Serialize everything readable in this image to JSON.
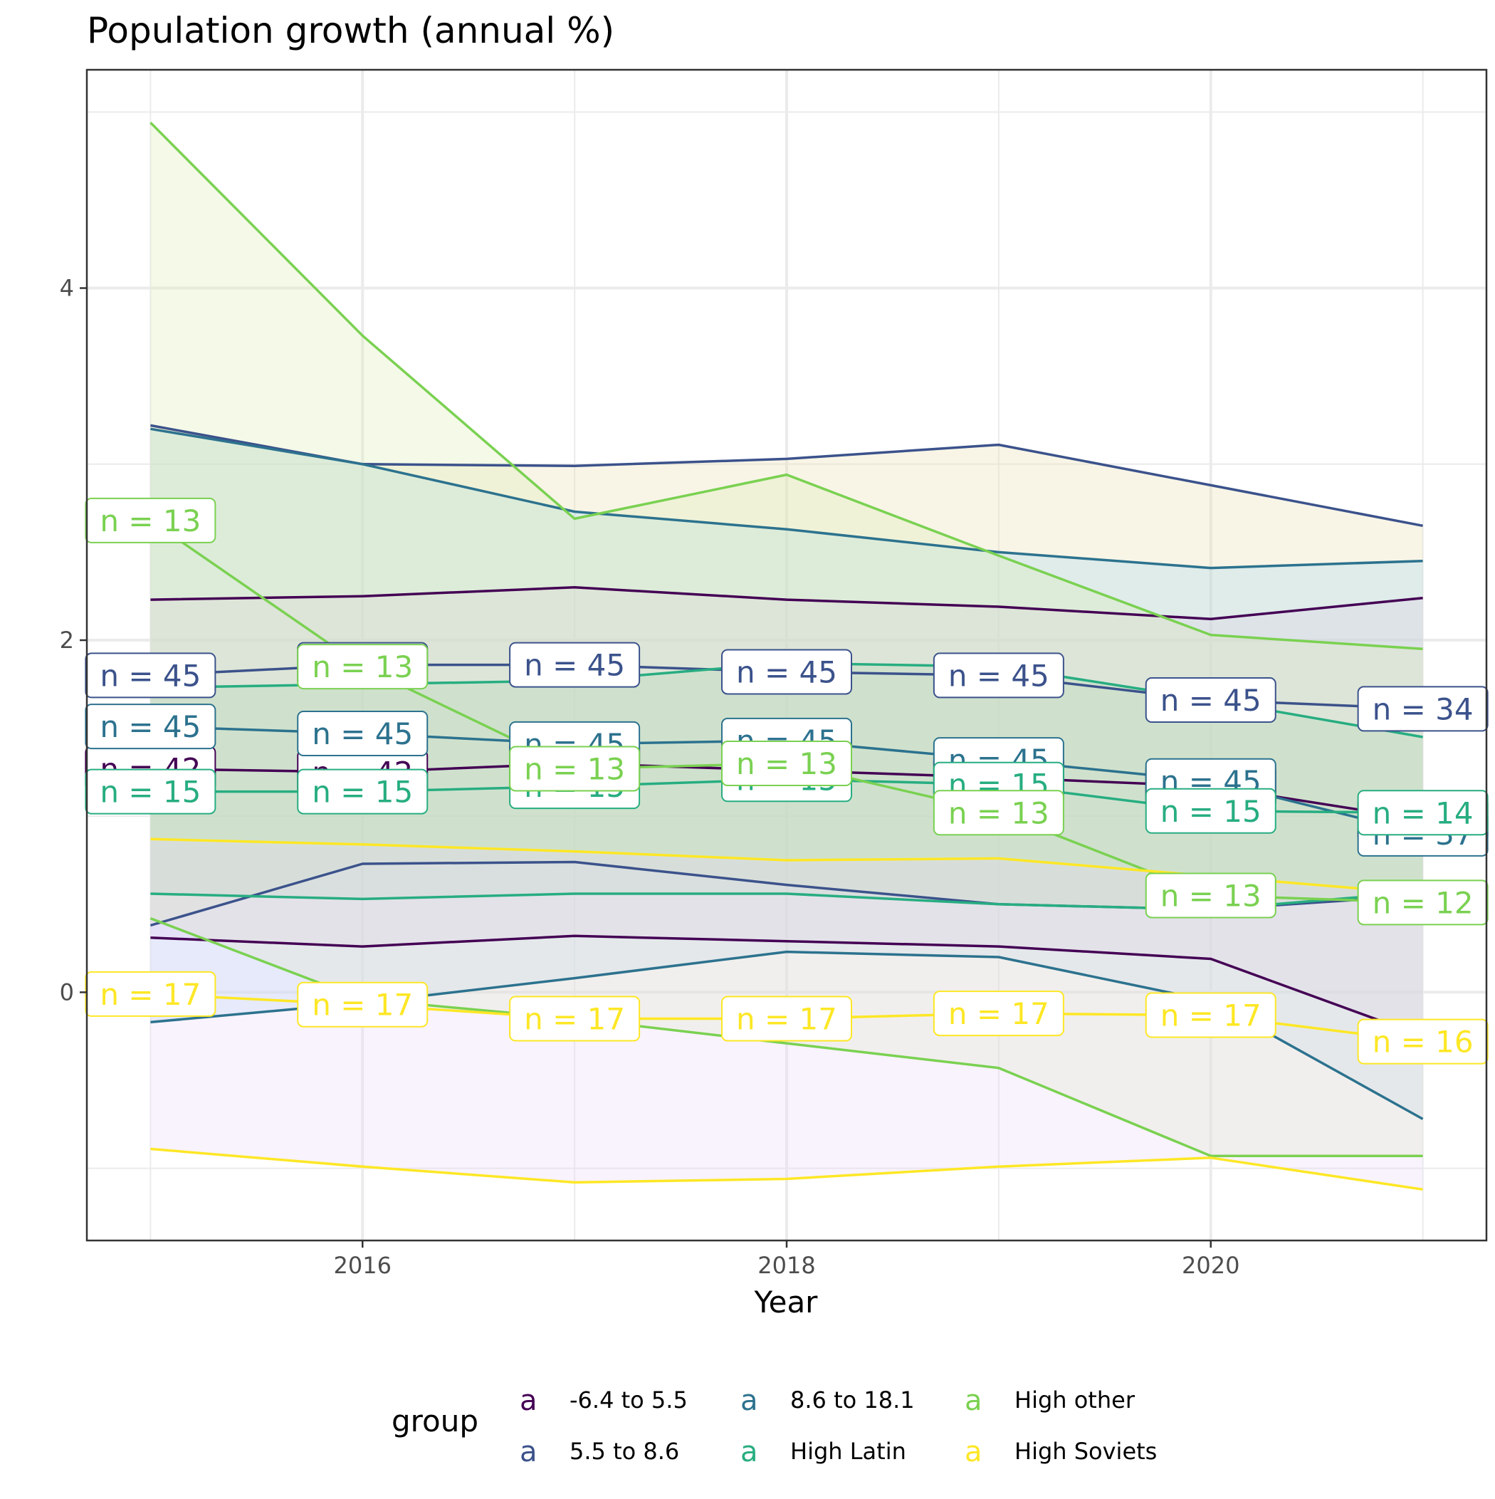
{
  "chart_data": {
    "type": "line",
    "title": "Population growth (annual %)",
    "xlabel": "Year",
    "ylabel": "",
    "x": [
      2015,
      2016,
      2017,
      2018,
      2019,
      2020,
      2021
    ],
    "x_ticks": [
      2016,
      2018,
      2020
    ],
    "y_ticks": [
      0,
      2,
      4
    ],
    "xlim": [
      2014.7,
      2021.3
    ],
    "ylim": [
      -1.41,
      5.24
    ],
    "grid": true,
    "legend_title": "group",
    "legend_position": "bottom",
    "legend_key_glyph": "a",
    "series": [
      {
        "name": "-6.4 to 5.5",
        "color": "#440154",
        "mean": [
          1.27,
          1.25,
          1.3,
          1.26,
          1.22,
          1.17,
          0.98
        ],
        "upper": [
          2.23,
          2.25,
          2.3,
          2.23,
          2.19,
          2.12,
          2.24
        ],
        "lower": [
          0.31,
          0.26,
          0.32,
          0.29,
          0.26,
          0.19,
          -0.25
        ],
        "n": [
          42,
          42,
          42,
          42,
          42,
          42,
          42
        ],
        "n_labels": [
          "n = 42",
          "n = 42",
          "n = 42",
          "n = 42",
          "n = 42",
          "n = 42",
          "n = 42"
        ],
        "band_fill": "#f4c2f2"
      },
      {
        "name": "5.5 to 8.6",
        "color": "#3b528b",
        "mean": [
          1.8,
          1.86,
          1.86,
          1.82,
          1.8,
          1.66,
          1.61
        ],
        "upper": [
          3.22,
          3.0,
          2.99,
          3.03,
          3.11,
          2.88,
          2.65
        ],
        "lower": [
          0.38,
          0.73,
          0.74,
          0.61,
          0.5,
          0.47,
          0.55
        ],
        "n": [
          45,
          45,
          45,
          45,
          45,
          45,
          34
        ],
        "n_labels": [
          "n = 45",
          "n = 45",
          "n = 45",
          "n = 45",
          "n = 45",
          "n = 45",
          "n = 34"
        ],
        "band_fill": "#e7dfb0"
      },
      {
        "name": "8.6 to 18.1",
        "color": "#21908c",
        "mean": [
          1.51,
          1.47,
          1.41,
          1.43,
          1.32,
          1.2,
          0.9
        ],
        "upper": [
          3.2,
          3.0,
          2.73,
          2.63,
          2.5,
          2.41,
          2.45
        ],
        "lower": [
          -0.17,
          -0.06,
          0.08,
          0.23,
          0.2,
          -0.05,
          -0.72
        ],
        "n": [
          45,
          45,
          45,
          45,
          45,
          45,
          37
        ],
        "n_labels": [
          "n = 45",
          "n = 45",
          "n = 45",
          "n = 45",
          "n = 45",
          "n = 45",
          "n = 37"
        ],
        "line_color": "#2c728e",
        "band_fill": "#a7d6f2"
      },
      {
        "name": "High Latin",
        "color": "#27ad81",
        "mean": [
          1.14,
          1.14,
          1.17,
          1.21,
          1.18,
          1.03,
          1.02
        ],
        "upper": [
          1.73,
          1.75,
          1.77,
          1.87,
          1.85,
          1.66,
          1.45
        ],
        "lower": [
          0.56,
          0.53,
          0.56,
          0.56,
          0.5,
          0.47,
          0.57
        ],
        "n": [
          15,
          15,
          15,
          15,
          15,
          15,
          14
        ],
        "n_labels": [
          "n = 15",
          "n = 15",
          "n = 15",
          "n = 15",
          "n = 15",
          "n = 15",
          "n = 14"
        ],
        "band_fill": "#9ed2b4"
      },
      {
        "name": "High other",
        "color": "#7ad151",
        "mean": [
          2.68,
          1.85,
          1.27,
          1.3,
          1.02,
          0.55,
          0.51
        ],
        "upper": [
          4.94,
          3.73,
          2.69,
          2.94,
          2.48,
          2.03,
          1.95
        ],
        "lower": [
          0.42,
          -0.04,
          -0.15,
          -0.29,
          -0.43,
          -0.93,
          -0.93
        ],
        "n": [
          13,
          13,
          13,
          13,
          13,
          13,
          12
        ],
        "n_labels": [
          "n = 13",
          "n = 13",
          "n = 13",
          "n = 13",
          "n = 13",
          "n = 13",
          "n = 12"
        ],
        "band_fill": "#dcebb4"
      },
      {
        "name": "High Soviets",
        "color": "#fde725",
        "mean": [
          -0.01,
          -0.07,
          -0.15,
          -0.15,
          -0.12,
          -0.13,
          -0.28
        ],
        "upper": [
          0.87,
          0.84,
          0.8,
          0.75,
          0.76,
          0.66,
          0.56
        ],
        "lower": [
          -0.89,
          -0.99,
          -1.08,
          -1.06,
          -0.99,
          -0.94,
          -1.12
        ],
        "n": [
          17,
          17,
          17,
          17,
          17,
          17,
          16
        ],
        "n_labels": [
          "n = 17",
          "n = 17",
          "n = 17",
          "n = 17",
          "n = 17",
          "n = 17",
          "n = 16"
        ],
        "band_fill": "#ecd8f8"
      }
    ]
  }
}
